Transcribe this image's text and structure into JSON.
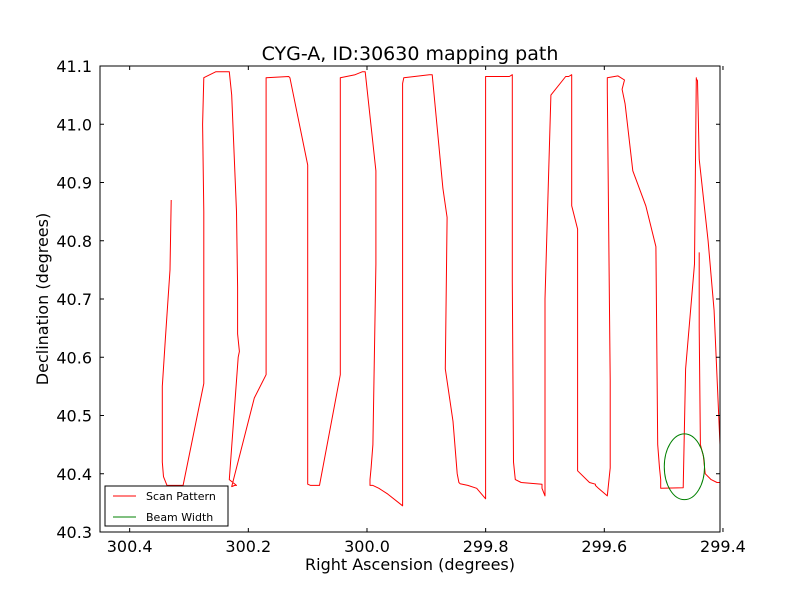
{
  "chart_data": {
    "type": "line",
    "title": "CYG-A, ID:30630 mapping path",
    "xlabel": "Right Ascension (degrees)",
    "ylabel": "Declination (degrees)",
    "xlim": [
      300.45,
      299.405
    ],
    "ylim": [
      40.3,
      41.1
    ],
    "x_reversed": true,
    "grid": false,
    "legend_placement": "lower-left",
    "xticks": [
      {
        "value": 300.4,
        "label": "300.4"
      },
      {
        "value": 300.2,
        "label": "300.2"
      },
      {
        "value": 300.0,
        "label": "300.0"
      },
      {
        "value": 299.8,
        "label": "299.8"
      },
      {
        "value": 299.6,
        "label": "299.6"
      },
      {
        "value": 299.4,
        "label": "299.4"
      }
    ],
    "yticks": [
      {
        "value": 40.3,
        "label": "40.3"
      },
      {
        "value": 40.4,
        "label": "40.4"
      },
      {
        "value": 40.5,
        "label": "40.5"
      },
      {
        "value": 40.6,
        "label": "40.6"
      },
      {
        "value": 40.7,
        "label": "40.7"
      },
      {
        "value": 40.8,
        "label": "40.8"
      },
      {
        "value": 40.9,
        "label": "40.9"
      },
      {
        "value": 41.0,
        "label": "41.0"
      },
      {
        "value": 41.1,
        "label": "41.1"
      }
    ],
    "series": [
      {
        "name": "Scan Pattern",
        "color": "#ff0000",
        "x": [
          300.33,
          300.332,
          300.34,
          300.345,
          300.345,
          300.343,
          300.337,
          300.32,
          300.31,
          300.275,
          300.275,
          300.275,
          300.277,
          300.275,
          300.255,
          300.232,
          300.228,
          300.222,
          300.22,
          300.218,
          300.218,
          300.215,
          300.215,
          300.217,
          300.22,
          300.232,
          300.22,
          300.223,
          300.228,
          300.19,
          300.17,
          300.17,
          300.17,
          300.17,
          300.132,
          300.13,
          300.1,
          300.1,
          300.1,
          300.1,
          300.1,
          300.1,
          300.095,
          300.08,
          300.045,
          300.045,
          300.045,
          300.045,
          300.02,
          300.008,
          300.003,
          299.985,
          299.985,
          299.985,
          299.99,
          299.993,
          299.995,
          299.995,
          299.99,
          299.98,
          299.965,
          299.94,
          299.94,
          299.94,
          299.94,
          299.938,
          299.895,
          299.89,
          299.89,
          299.872,
          299.865,
          299.868,
          299.855,
          299.848,
          299.845,
          299.843,
          299.83,
          299.815,
          299.8,
          299.8,
          299.8,
          299.8,
          299.76,
          299.755,
          299.755,
          299.755,
          299.755,
          299.753,
          299.75,
          299.74,
          299.705,
          299.705,
          299.7,
          299.7,
          299.69,
          299.665,
          299.66,
          299.655,
          299.655,
          299.655,
          299.655,
          299.645,
          299.645,
          299.645,
          299.645,
          299.625,
          299.615,
          299.615,
          299.61,
          299.595,
          299.59,
          299.59,
          299.595,
          299.595,
          299.577,
          299.566,
          299.57,
          299.565,
          299.552,
          299.53,
          299.513,
          299.51,
          299.507,
          299.505,
          299.505,
          299.505,
          299.505,
          299.467,
          299.463,
          299.448,
          299.445,
          299.445,
          299.445,
          299.443,
          299.44,
          299.425,
          299.415,
          299.405,
          299.405,
          299.405,
          299.41,
          299.42,
          299.43,
          299.433,
          299.438,
          299.44,
          299.44,
          299.44,
          299.44,
          299.44,
          299.44
        ],
        "y": [
          40.87,
          40.75,
          40.63,
          40.55,
          40.42,
          40.395,
          40.38,
          40.38,
          40.38,
          40.555,
          40.75,
          40.85,
          41.0,
          41.08,
          41.09,
          41.09,
          41.05,
          40.9,
          40.85,
          40.72,
          40.64,
          40.61,
          40.61,
          40.6,
          40.56,
          40.39,
          40.38,
          40.38,
          40.378,
          40.53,
          40.57,
          40.9,
          41.05,
          41.08,
          41.082,
          41.08,
          40.93,
          40.76,
          40.52,
          40.405,
          40.385,
          40.382,
          40.38,
          40.38,
          40.57,
          41.05,
          41.075,
          41.08,
          41.085,
          41.09,
          41.09,
          40.92,
          40.86,
          40.76,
          40.45,
          40.41,
          40.39,
          40.38,
          40.38,
          40.375,
          40.365,
          40.345,
          40.44,
          40.55,
          41.07,
          41.08,
          41.085,
          41.085,
          41.085,
          40.89,
          40.84,
          40.58,
          40.49,
          40.4,
          40.385,
          40.383,
          40.38,
          40.375,
          40.357,
          40.71,
          41.05,
          41.082,
          41.082,
          41.085,
          40.91,
          40.84,
          40.73,
          40.42,
          40.39,
          40.385,
          40.382,
          40.375,
          40.362,
          40.7,
          41.05,
          41.082,
          41.082,
          41.085,
          41.07,
          40.96,
          40.86,
          40.82,
          40.72,
          40.43,
          40.405,
          40.385,
          40.382,
          40.38,
          40.375,
          40.362,
          40.41,
          40.56,
          41.06,
          41.08,
          41.083,
          41.076,
          41.06,
          41.035,
          40.92,
          40.86,
          40.79,
          40.45,
          40.41,
          40.39,
          40.38,
          40.375,
          40.375,
          40.376,
          40.58,
          40.76,
          41.08,
          41.08,
          41.078,
          41.075,
          40.94,
          40.8,
          40.68,
          40.45,
          40.4,
          40.385,
          40.385,
          40.39,
          40.4,
          40.43,
          40.45,
          40.65,
          40.72,
          40.73,
          40.75,
          40.76,
          40.78
        ],
        "color_hex": "#ff0000"
      },
      {
        "name": "Beam Width",
        "type": "circle",
        "color": "#008000",
        "center_x": 299.465,
        "center_y": 40.412,
        "radius_deg": 0.0565
      }
    ]
  }
}
